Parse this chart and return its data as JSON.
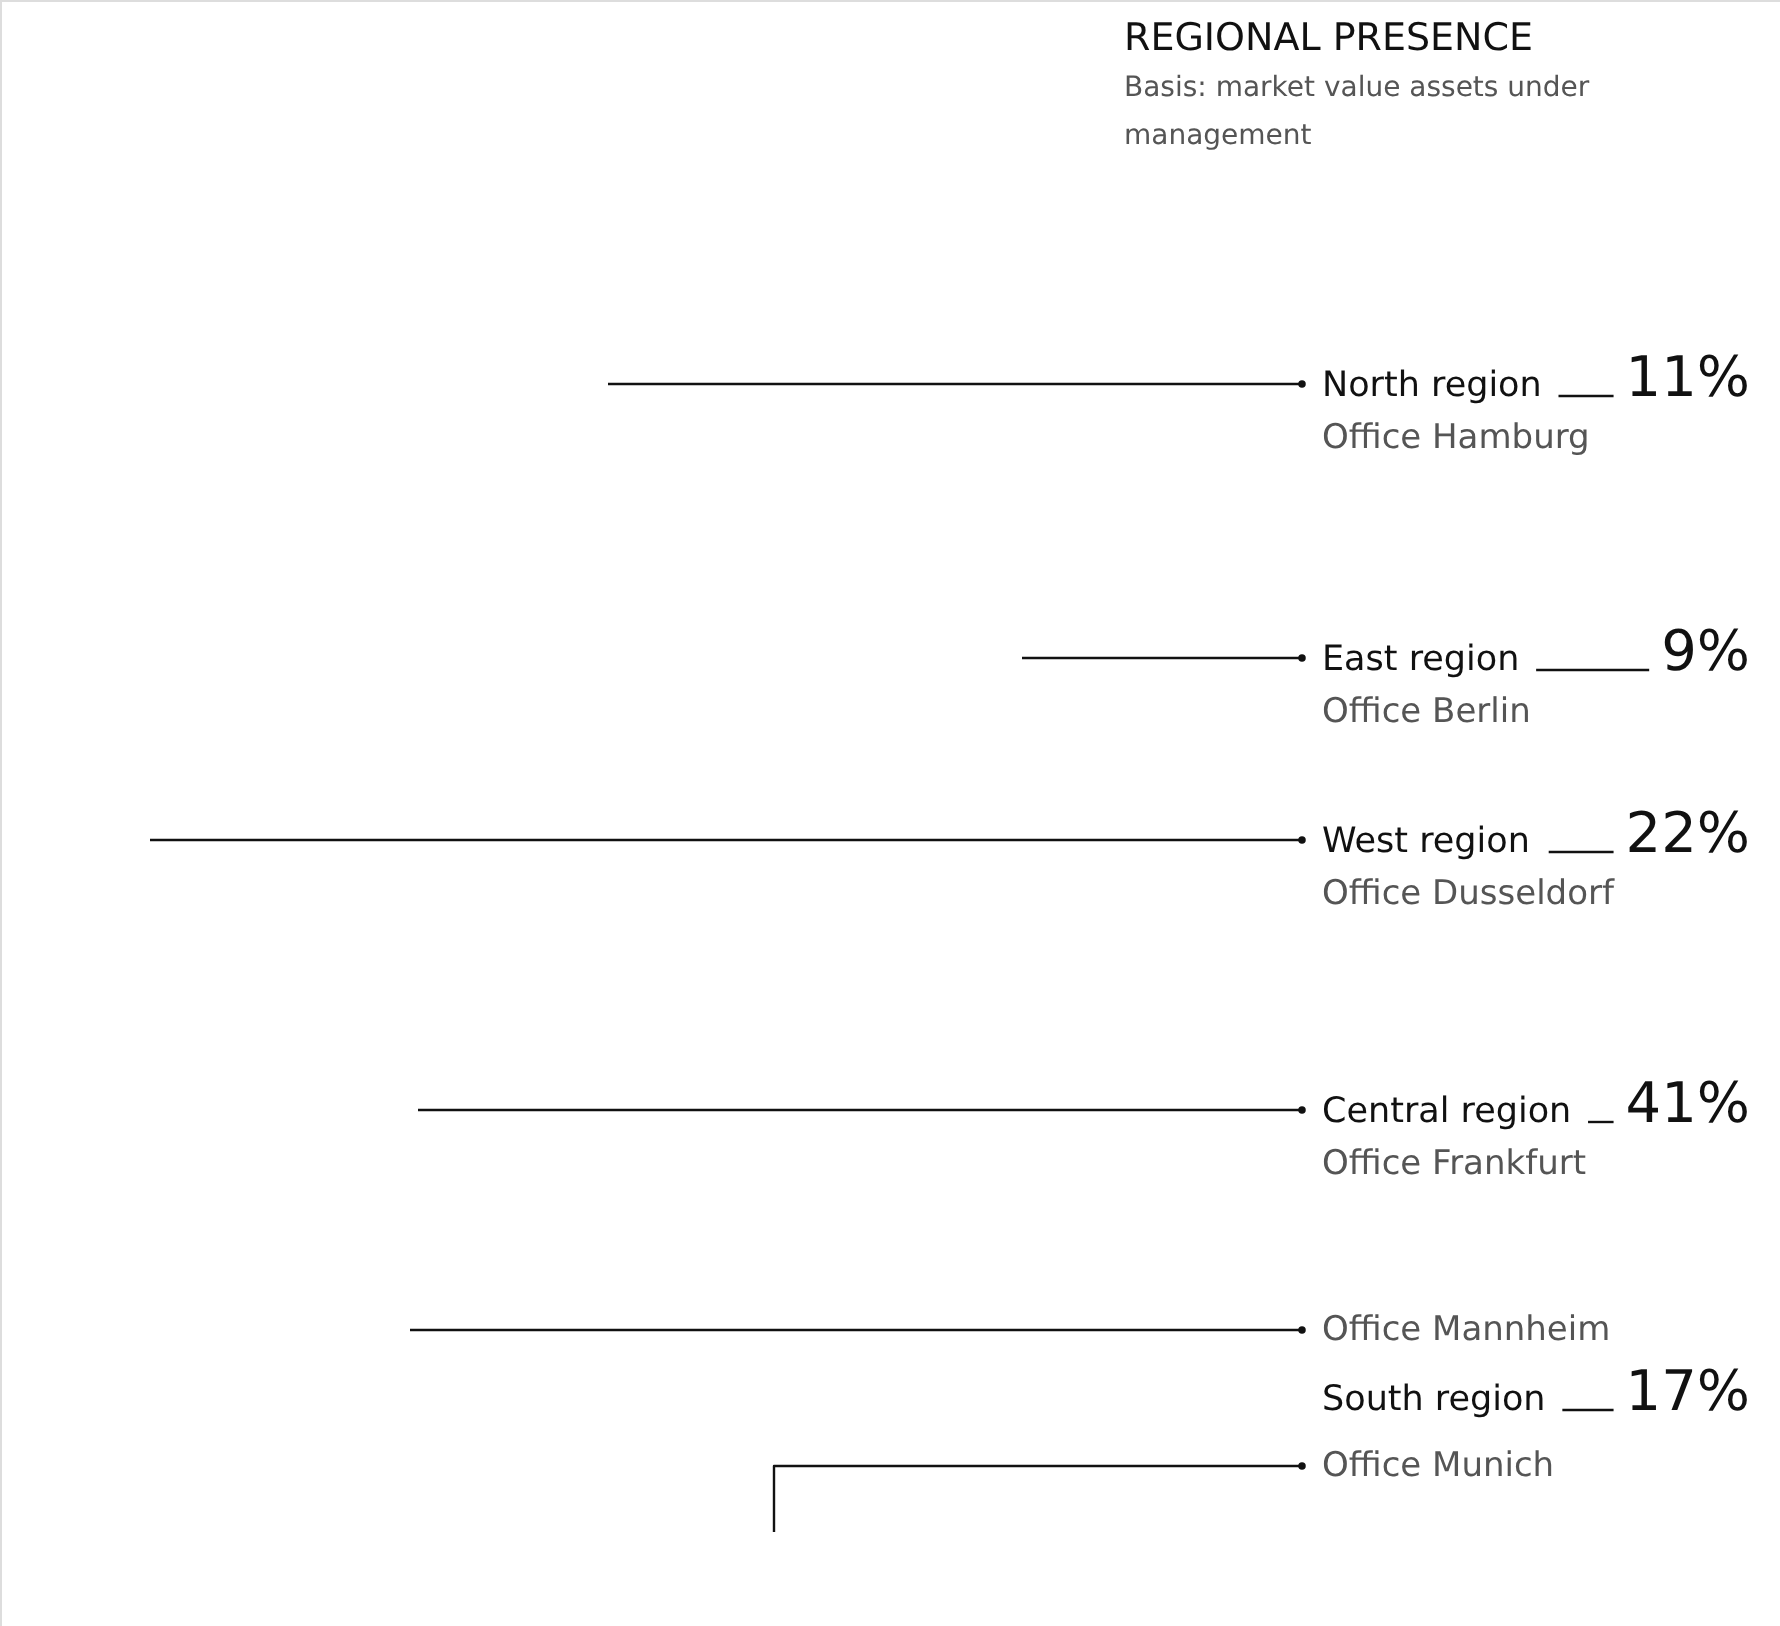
{
  "chart_data": {
    "type": "other",
    "title": "REGIONAL PRESENCE",
    "subtitle": "Basis: market value assets under management",
    "categories": [
      "North region",
      "East region",
      "West region",
      "Central region",
      "South region"
    ],
    "values": [
      11,
      9,
      22,
      41,
      17
    ],
    "value_labels": [
      "11%",
      "9%",
      "22%",
      "41%",
      "17%"
    ],
    "annotations": [
      "Office Hamburg",
      "Office Berlin",
      "Office Dusseldorf",
      "Office Frankfurt",
      "Office Mannheim",
      "Office Munich"
    ]
  }
}
